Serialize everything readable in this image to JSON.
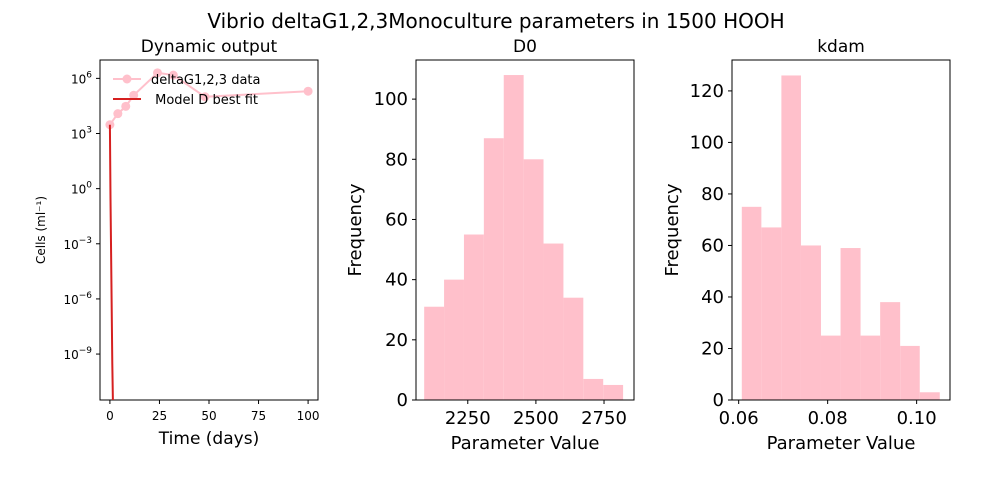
{
  "suptitle": "Vibrio deltaG1,2,3Monoculture parameters in 1500 HOOH",
  "colors": {
    "data": "#ffc0cb",
    "model": "#d62020",
    "hist": "#ffc0cb",
    "axis": "#000000"
  },
  "chart_data": [
    {
      "type": "line",
      "title": "Dynamic output",
      "xlabel": "Time (days)",
      "ylabel": "Cells (ml⁻¹)",
      "xlim": [
        -5,
        105
      ],
      "ylim_log10": [
        -11.5,
        7.0
      ],
      "yscale": "log",
      "xticks": [
        0,
        25,
        50,
        75,
        100
      ],
      "yticks": [
        {
          "exp": 6,
          "base": "10",
          "sup": "6"
        },
        {
          "exp": 3,
          "base": "10",
          "sup": "3"
        },
        {
          "exp": 0,
          "base": "10",
          "sup": "0"
        },
        {
          "exp": -3,
          "base": "10",
          "sup": "−3"
        },
        {
          "exp": -6,
          "base": "10",
          "sup": "−6"
        },
        {
          "exp": -9,
          "base": "10",
          "sup": "−9"
        }
      ],
      "legend": {
        "placement": "upper-left",
        "entries": [
          "deltaG1,2,3 data",
          " Model D best fit"
        ]
      },
      "series": [
        {
          "name": "deltaG1,2,3 data",
          "x": [
            0,
            4,
            8,
            12,
            24,
            32,
            48,
            100
          ],
          "y": [
            3000,
            12000,
            30000,
            120000,
            2000000,
            1500000,
            100000,
            200000
          ]
        },
        {
          "name": " Model D best fit",
          "x": [
            0,
            0.3,
            0.6,
            0.9,
            1.2,
            1.5,
            1.8
          ],
          "y": [
            3000,
            0.3,
            0.0003,
            3e-07,
            3e-10,
            3e-12,
            1e-13
          ]
        }
      ]
    },
    {
      "type": "bar",
      "title": "D0",
      "xlabel": "Parameter Value",
      "ylabel": "Frequency",
      "xlim": [
        2060,
        2860
      ],
      "ylim": [
        0,
        113
      ],
      "xticks": [
        2250,
        2500,
        2750
      ],
      "yticks": [
        0,
        20,
        40,
        60,
        80,
        100
      ],
      "bins": [
        {
          "x0": 2090,
          "x1": 2163,
          "count": 31
        },
        {
          "x0": 2163,
          "x1": 2236,
          "count": 40
        },
        {
          "x0": 2236,
          "x1": 2309,
          "count": 55
        },
        {
          "x0": 2309,
          "x1": 2382,
          "count": 87
        },
        {
          "x0": 2382,
          "x1": 2455,
          "count": 108
        },
        {
          "x0": 2455,
          "x1": 2528,
          "count": 80
        },
        {
          "x0": 2528,
          "x1": 2601,
          "count": 52
        },
        {
          "x0": 2601,
          "x1": 2674,
          "count": 34
        },
        {
          "x0": 2674,
          "x1": 2747,
          "count": 7
        },
        {
          "x0": 2747,
          "x1": 2820,
          "count": 5
        }
      ]
    },
    {
      "type": "bar",
      "title": "kdam",
      "xlabel": "Parameter Value",
      "ylabel": "Frequency",
      "xlim": [
        0.0585,
        0.1075
      ],
      "ylim": [
        0,
        132
      ],
      "xticks": [
        0.06,
        0.08,
        0.1
      ],
      "xtick_labels": [
        "0.06",
        "0.08",
        "0.10"
      ],
      "yticks": [
        0,
        20,
        40,
        60,
        80,
        100,
        120
      ],
      "bins": [
        {
          "x0": 0.0607,
          "x1": 0.0651,
          "count": 75
        },
        {
          "x0": 0.0651,
          "x1": 0.0696,
          "count": 67
        },
        {
          "x0": 0.0696,
          "x1": 0.074,
          "count": 126
        },
        {
          "x0": 0.074,
          "x1": 0.0785,
          "count": 60
        },
        {
          "x0": 0.0785,
          "x1": 0.0829,
          "count": 25
        },
        {
          "x0": 0.0829,
          "x1": 0.0874,
          "count": 59
        },
        {
          "x0": 0.0874,
          "x1": 0.0918,
          "count": 25
        },
        {
          "x0": 0.0918,
          "x1": 0.0963,
          "count": 38
        },
        {
          "x0": 0.0963,
          "x1": 0.1007,
          "count": 21
        },
        {
          "x0": 0.1007,
          "x1": 0.1052,
          "count": 3
        }
      ]
    }
  ]
}
